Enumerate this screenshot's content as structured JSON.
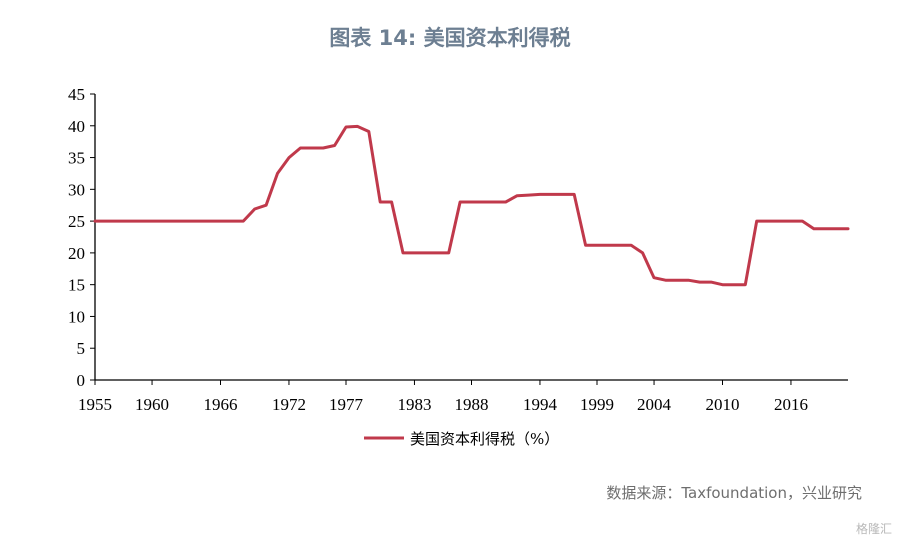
{
  "title": "图表 14: 美国资本利得税",
  "source": "数据来源：Taxfoundation，兴业研究",
  "watermark": "格隆汇",
  "colors": {
    "line": "#c0394b",
    "axis": "#000000",
    "title": "#6d7f92"
  },
  "chart_data": {
    "type": "line",
    "title": "图表 14: 美国资本利得税",
    "xlabel": "",
    "ylabel": "",
    "xlim": [
      1955,
      2021
    ],
    "ylim": [
      0,
      45
    ],
    "yticks": [
      0,
      5,
      10,
      15,
      20,
      25,
      30,
      35,
      40,
      45
    ],
    "xtick_labels": [
      "1955",
      "1960",
      "1966",
      "1972",
      "1977",
      "1983",
      "1988",
      "1994",
      "1999",
      "2004",
      "2010",
      "2016"
    ],
    "grid": false,
    "legend_position": "bottom-center",
    "series": [
      {
        "name": "美国资本利得税（%）",
        "x": [
          1955,
          1956,
          1957,
          1958,
          1959,
          1960,
          1961,
          1962,
          1963,
          1964,
          1965,
          1966,
          1967,
          1968,
          1969,
          1970,
          1971,
          1972,
          1973,
          1974,
          1975,
          1976,
          1977,
          1978,
          1979,
          1980,
          1981,
          1982,
          1983,
          1984,
          1985,
          1986,
          1987,
          1988,
          1989,
          1990,
          1991,
          1992,
          1993,
          1994,
          1995,
          1996,
          1997,
          1998,
          1999,
          2000,
          2001,
          2002,
          2003,
          2004,
          2005,
          2006,
          2007,
          2008,
          2009,
          2010,
          2011,
          2012,
          2013,
          2014,
          2015,
          2016,
          2017,
          2018,
          2019,
          2020,
          2021
        ],
        "values": [
          25,
          25,
          25,
          25,
          25,
          25,
          25,
          25,
          25,
          25,
          25,
          25,
          25,
          25,
          26.9,
          27.5,
          32.5,
          35.0,
          36.5,
          36.5,
          36.5,
          36.9,
          39.8,
          39.9,
          39.1,
          28.0,
          28.0,
          20.0,
          20.0,
          20.0,
          20.0,
          20.0,
          28.0,
          28.0,
          28.0,
          28.0,
          28.0,
          29.0,
          29.1,
          29.2,
          29.2,
          29.2,
          29.2,
          21.2,
          21.2,
          21.2,
          21.2,
          21.2,
          20.0,
          16.1,
          15.7,
          15.7,
          15.7,
          15.4,
          15.4,
          15.0,
          15.0,
          15.0,
          25.0,
          25.0,
          25.0,
          25.0,
          25.0,
          23.8,
          23.8,
          23.8,
          23.8
        ]
      }
    ]
  }
}
